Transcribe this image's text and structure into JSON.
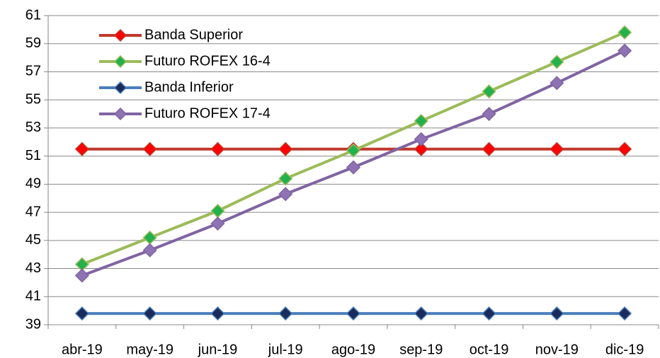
{
  "chart_data": {
    "type": "line",
    "categories": [
      "abr-19",
      "may-19",
      "jun-19",
      "jul-19",
      "ago-19",
      "sep-19",
      "oct-19",
      "nov-19",
      "dic-19"
    ],
    "series": [
      {
        "name": "Banda Superior",
        "color": "#c0392b",
        "marker_color": "#ff0000",
        "values": [
          51.5,
          51.5,
          51.5,
          51.5,
          51.5,
          51.5,
          51.5,
          51.5,
          51.5
        ]
      },
      {
        "name": "Futuro ROFEX 16-4",
        "color": "#9bbb59",
        "marker_color": "#22b14c",
        "values": [
          43.3,
          45.2,
          47.1,
          49.4,
          51.4,
          53.5,
          55.6,
          57.7,
          59.8
        ]
      },
      {
        "name": "Banda Inferior",
        "color": "#4a7ebb",
        "marker_color": "#1a2b5c",
        "values": [
          39.8,
          39.8,
          39.8,
          39.8,
          39.8,
          39.8,
          39.8,
          39.8,
          39.8
        ]
      },
      {
        "name": "Futuro ROFEX 17-4",
        "color": "#8064a2",
        "marker_color": "#8e72b4",
        "values": [
          42.5,
          44.3,
          46.2,
          48.3,
          50.2,
          52.2,
          54,
          56.2,
          58.5
        ]
      }
    ],
    "ylim": [
      39,
      61
    ],
    "yticks": [
      39,
      41,
      43,
      45,
      47,
      49,
      51,
      53,
      55,
      57,
      59,
      61
    ],
    "grid": true,
    "legend": "top-left"
  }
}
